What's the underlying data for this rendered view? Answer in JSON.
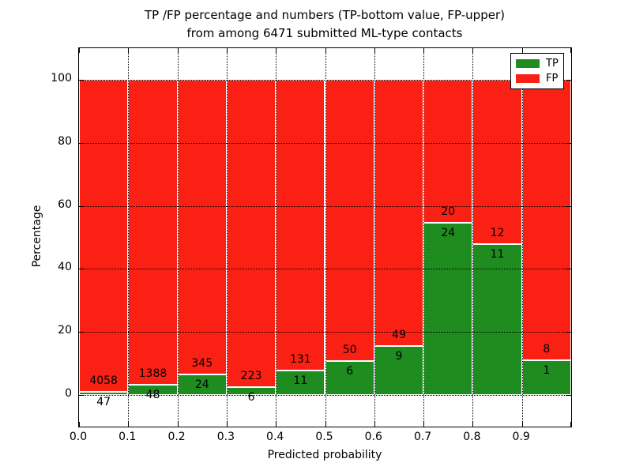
{
  "chart_data": {
    "type": "bar",
    "stacked": true,
    "title_line1": "TP /FP percentage and numbers (TP-bottom value, FP-upper)",
    "title_line2": "from among 6471 submitted ML-type contacts",
    "xlabel": "Predicted probability",
    "ylabel": "Percentage",
    "categories": [
      "0.0-0.1",
      "0.1-0.2",
      "0.2-0.3",
      "0.3-0.4",
      "0.4-0.5",
      "0.5-0.6",
      "0.6-0.7",
      "0.7-0.8",
      "0.8-0.9",
      "0.9-1.0"
    ],
    "x_tick_labels": [
      "0.0",
      "0.1",
      "0.2",
      "0.3",
      "0.4",
      "0.5",
      "0.6",
      "0.7",
      "0.8",
      "0.9"
    ],
    "y_ticks": [
      0,
      20,
      40,
      60,
      80,
      100
    ],
    "xlim": [
      0.0,
      1.0
    ],
    "ylim": [
      -10,
      110
    ],
    "grid": true,
    "grid_style": "dotted",
    "series": [
      {
        "name": "TP",
        "color": "#1E8C1E",
        "counts": [
          47,
          48,
          24,
          6,
          11,
          6,
          9,
          24,
          11,
          1
        ],
        "pct": [
          1.14,
          3.34,
          6.5,
          2.62,
          7.75,
          10.71,
          15.52,
          54.55,
          47.83,
          11.11
        ]
      },
      {
        "name": "FP",
        "color": "#FA2014",
        "counts": [
          4058,
          1388,
          345,
          223,
          131,
          50,
          49,
          20,
          12,
          8
        ],
        "pct": [
          98.86,
          96.66,
          93.5,
          97.38,
          92.25,
          89.29,
          84.48,
          45.45,
          52.17,
          88.89
        ]
      }
    ],
    "legend": {
      "position": "upper right",
      "entries": [
        {
          "label": "TP",
          "color": "#1E8C1E"
        },
        {
          "label": "FP",
          "color": "#FA2014"
        }
      ]
    },
    "colors": {
      "bar_edge": "#FFFFFF",
      "gridline": "#000000",
      "frame": "#000000",
      "background": "#FFFFFF"
    }
  }
}
